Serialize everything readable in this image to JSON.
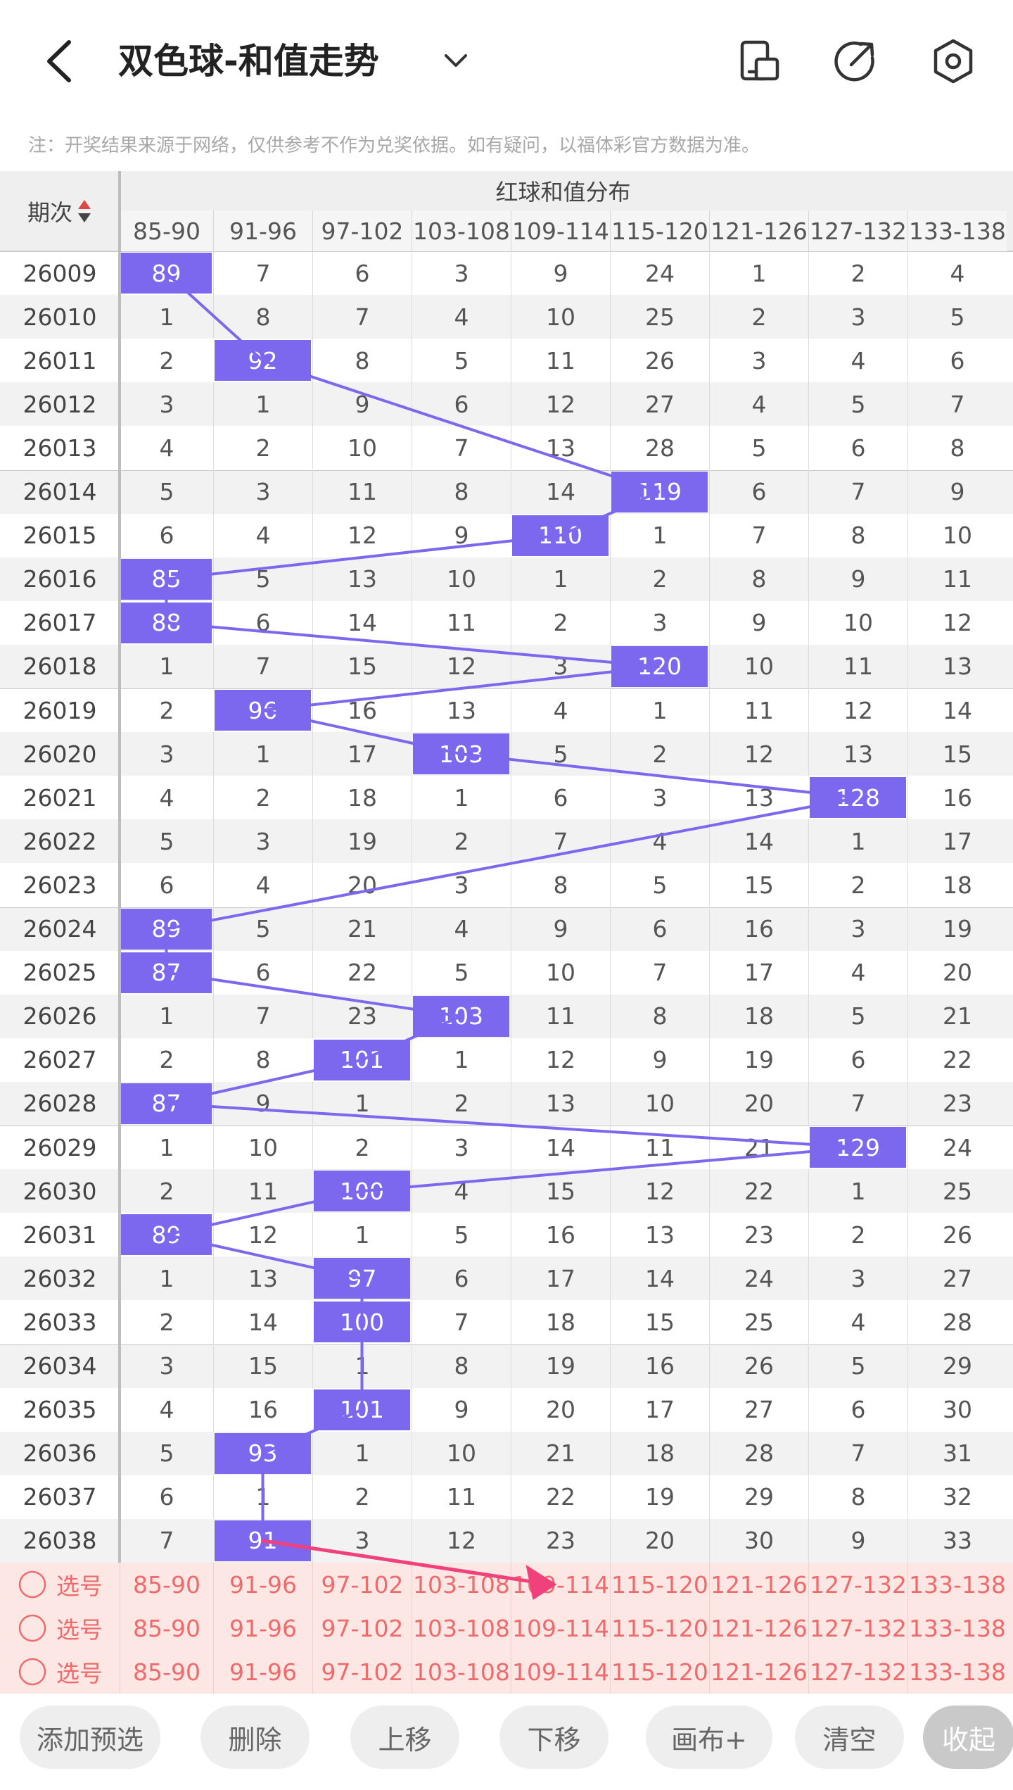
{
  "header": {
    "title": "双色球-和值走势",
    "icons": [
      "back-icon",
      "chevron-down-icon",
      "phone-layout-icon",
      "share-icon",
      "settings-icon"
    ]
  },
  "note": "注：开奖结果来源于网络，仅供参考不作为兑奖依据。如有疑问，以福体彩官方数据为准。",
  "table": {
    "period_header": "期次",
    "group_header": "红球和值分布",
    "ranges": [
      "85-90",
      "91-96",
      "97-102",
      "103-108",
      "109-114",
      "115-120",
      "121-126",
      "127-132",
      "133-138"
    ],
    "rows": [
      {
        "period": "26009",
        "cells": [
          "89",
          "7",
          "6",
          "3",
          "9",
          "24",
          "1",
          "2",
          "4"
        ],
        "hit": 0
      },
      {
        "period": "26010",
        "cells": [
          "1",
          "8",
          "7",
          "4",
          "10",
          "25",
          "2",
          "3",
          "5"
        ],
        "hit": -1
      },
      {
        "period": "26011",
        "cells": [
          "2",
          "92",
          "8",
          "5",
          "11",
          "26",
          "3",
          "4",
          "6"
        ],
        "hit": 1
      },
      {
        "period": "26012",
        "cells": [
          "3",
          "1",
          "9",
          "6",
          "12",
          "27",
          "4",
          "5",
          "7"
        ],
        "hit": -1
      },
      {
        "period": "26013",
        "cells": [
          "4",
          "2",
          "10",
          "7",
          "13",
          "28",
          "5",
          "6",
          "8"
        ],
        "hit": -1
      },
      {
        "period": "26014",
        "cells": [
          "5",
          "3",
          "11",
          "8",
          "14",
          "119",
          "6",
          "7",
          "9"
        ],
        "hit": 5
      },
      {
        "period": "26015",
        "cells": [
          "6",
          "4",
          "12",
          "9",
          "110",
          "1",
          "7",
          "8",
          "10"
        ],
        "hit": 4
      },
      {
        "period": "26016",
        "cells": [
          "85",
          "5",
          "13",
          "10",
          "1",
          "2",
          "8",
          "9",
          "11"
        ],
        "hit": 0
      },
      {
        "period": "26017",
        "cells": [
          "88",
          "6",
          "14",
          "11",
          "2",
          "3",
          "9",
          "10",
          "12"
        ],
        "hit": 0
      },
      {
        "period": "26018",
        "cells": [
          "1",
          "7",
          "15",
          "12",
          "3",
          "120",
          "10",
          "11",
          "13"
        ],
        "hit": 5
      },
      {
        "period": "26019",
        "cells": [
          "2",
          "96",
          "16",
          "13",
          "4",
          "1",
          "11",
          "12",
          "14"
        ],
        "hit": 1
      },
      {
        "period": "26020",
        "cells": [
          "3",
          "1",
          "17",
          "103",
          "5",
          "2",
          "12",
          "13",
          "15"
        ],
        "hit": 3
      },
      {
        "period": "26021",
        "cells": [
          "4",
          "2",
          "18",
          "1",
          "6",
          "3",
          "13",
          "128",
          "16"
        ],
        "hit": 7
      },
      {
        "period": "26022",
        "cells": [
          "5",
          "3",
          "19",
          "2",
          "7",
          "4",
          "14",
          "1",
          "17"
        ],
        "hit": -1
      },
      {
        "period": "26023",
        "cells": [
          "6",
          "4",
          "20",
          "3",
          "8",
          "5",
          "15",
          "2",
          "18"
        ],
        "hit": -1
      },
      {
        "period": "26024",
        "cells": [
          "89",
          "5",
          "21",
          "4",
          "9",
          "6",
          "16",
          "3",
          "19"
        ],
        "hit": 0
      },
      {
        "period": "26025",
        "cells": [
          "87",
          "6",
          "22",
          "5",
          "10",
          "7",
          "17",
          "4",
          "20"
        ],
        "hit": 0
      },
      {
        "period": "26026",
        "cells": [
          "1",
          "7",
          "23",
          "103",
          "11",
          "8",
          "18",
          "5",
          "21"
        ],
        "hit": 3
      },
      {
        "period": "26027",
        "cells": [
          "2",
          "8",
          "101",
          "1",
          "12",
          "9",
          "19",
          "6",
          "22"
        ],
        "hit": 2
      },
      {
        "period": "26028",
        "cells": [
          "87",
          "9",
          "1",
          "2",
          "13",
          "10",
          "20",
          "7",
          "23"
        ],
        "hit": 0
      },
      {
        "period": "26029",
        "cells": [
          "1",
          "10",
          "2",
          "3",
          "14",
          "11",
          "21",
          "129",
          "24"
        ],
        "hit": 7
      },
      {
        "period": "26030",
        "cells": [
          "2",
          "11",
          "100",
          "4",
          "15",
          "12",
          "22",
          "1",
          "25"
        ],
        "hit": 2
      },
      {
        "period": "26031",
        "cells": [
          "89",
          "12",
          "1",
          "5",
          "16",
          "13",
          "23",
          "2",
          "26"
        ],
        "hit": 0
      },
      {
        "period": "26032",
        "cells": [
          "1",
          "13",
          "97",
          "6",
          "17",
          "14",
          "24",
          "3",
          "27"
        ],
        "hit": 2
      },
      {
        "period": "26033",
        "cells": [
          "2",
          "14",
          "100",
          "7",
          "18",
          "15",
          "25",
          "4",
          "28"
        ],
        "hit": 2
      },
      {
        "period": "26034",
        "cells": [
          "3",
          "15",
          "1",
          "8",
          "19",
          "16",
          "26",
          "5",
          "29"
        ],
        "hit": -1
      },
      {
        "period": "26035",
        "cells": [
          "4",
          "16",
          "101",
          "9",
          "20",
          "17",
          "27",
          "6",
          "30"
        ],
        "hit": 2
      },
      {
        "period": "26036",
        "cells": [
          "5",
          "93",
          "1",
          "10",
          "21",
          "18",
          "28",
          "7",
          "31"
        ],
        "hit": 1
      },
      {
        "period": "26037",
        "cells": [
          "6",
          "1",
          "2",
          "11",
          "22",
          "19",
          "29",
          "8",
          "32"
        ],
        "hit": -1
      },
      {
        "period": "26038",
        "cells": [
          "7",
          "91",
          "3",
          "12",
          "23",
          "20",
          "30",
          "9",
          "33"
        ],
        "hit": 1
      }
    ],
    "select_label": "选号",
    "select_rows": 3
  },
  "colors": {
    "hit": "#7b68ee",
    "line": "#7b68ee",
    "arrow": "#f0417d",
    "row_alt": "#f2f2f2",
    "select_bg": "#fde7e4",
    "select_text": "#ef6a6a"
  },
  "buttons": [
    "添加预选",
    "删除",
    "上移",
    "下移",
    "画布+",
    "清空",
    "收起"
  ]
}
